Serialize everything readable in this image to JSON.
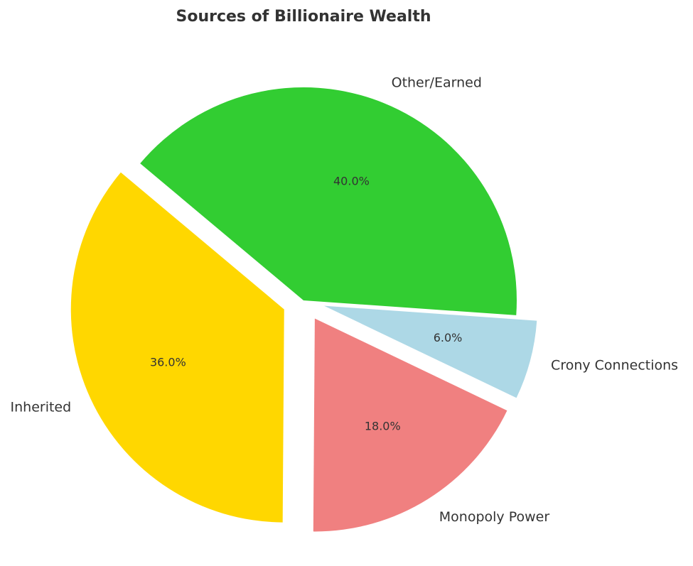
{
  "chart_data": {
    "type": "pie",
    "title": "Sources of Billionaire Wealth",
    "start_angle_deg": 140,
    "direction": "counterclockwise",
    "slices": [
      {
        "label": "Inherited",
        "value": 36.0,
        "pct_label": "36.0%",
        "color": "#FFD700",
        "exploded": true
      },
      {
        "label": "Monopoly Power",
        "value": 18.0,
        "pct_label": "18.0%",
        "color": "#F08080",
        "exploded": true
      },
      {
        "label": "Crony Connections",
        "value": 6.0,
        "pct_label": "6.0%",
        "color": "#ADD8E6",
        "exploded": true
      },
      {
        "label": "Other/Earned",
        "value": 40.0,
        "pct_label": "40.0%",
        "color": "#32CD32",
        "exploded": false
      }
    ]
  }
}
